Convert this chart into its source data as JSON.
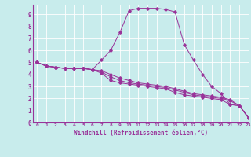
{
  "xlabel": "Windchill (Refroidissement éolien,°C)",
  "bg_color": "#c8ecec",
  "line_color": "#993399",
  "xlim": [
    -0.5,
    23
  ],
  "ylim": [
    0,
    9.8
  ],
  "xticks": [
    0,
    1,
    2,
    3,
    4,
    5,
    6,
    7,
    8,
    9,
    10,
    11,
    12,
    13,
    14,
    15,
    16,
    17,
    18,
    19,
    20,
    21,
    22,
    23
  ],
  "yticks": [
    0,
    1,
    2,
    3,
    4,
    5,
    6,
    7,
    8,
    9
  ],
  "series": [
    [
      5.0,
      4.7,
      4.6,
      4.5,
      4.5,
      4.5,
      4.4,
      4.1,
      3.5,
      3.3,
      3.2,
      3.1,
      3.0,
      2.9,
      2.8,
      2.5,
      2.3,
      2.2,
      2.1,
      2.0,
      1.9,
      1.5,
      1.4,
      0.4
    ],
    [
      5.0,
      4.7,
      4.6,
      4.5,
      4.5,
      4.5,
      4.4,
      5.2,
      6.0,
      7.5,
      9.3,
      9.5,
      9.5,
      9.5,
      9.4,
      9.2,
      6.5,
      5.2,
      4.0,
      3.0,
      2.4,
      1.5,
      1.4,
      0.4
    ],
    [
      5.0,
      4.7,
      4.6,
      4.5,
      4.5,
      4.5,
      4.4,
      4.2,
      3.8,
      3.5,
      3.3,
      3.2,
      3.1,
      3.0,
      2.9,
      2.7,
      2.5,
      2.3,
      2.2,
      2.1,
      2.0,
      1.8,
      1.4,
      0.4
    ],
    [
      5.0,
      4.7,
      4.6,
      4.5,
      4.5,
      4.5,
      4.4,
      4.3,
      4.0,
      3.7,
      3.5,
      3.3,
      3.2,
      3.1,
      3.0,
      2.8,
      2.6,
      2.4,
      2.3,
      2.2,
      2.1,
      1.9,
      1.4,
      0.4
    ]
  ]
}
